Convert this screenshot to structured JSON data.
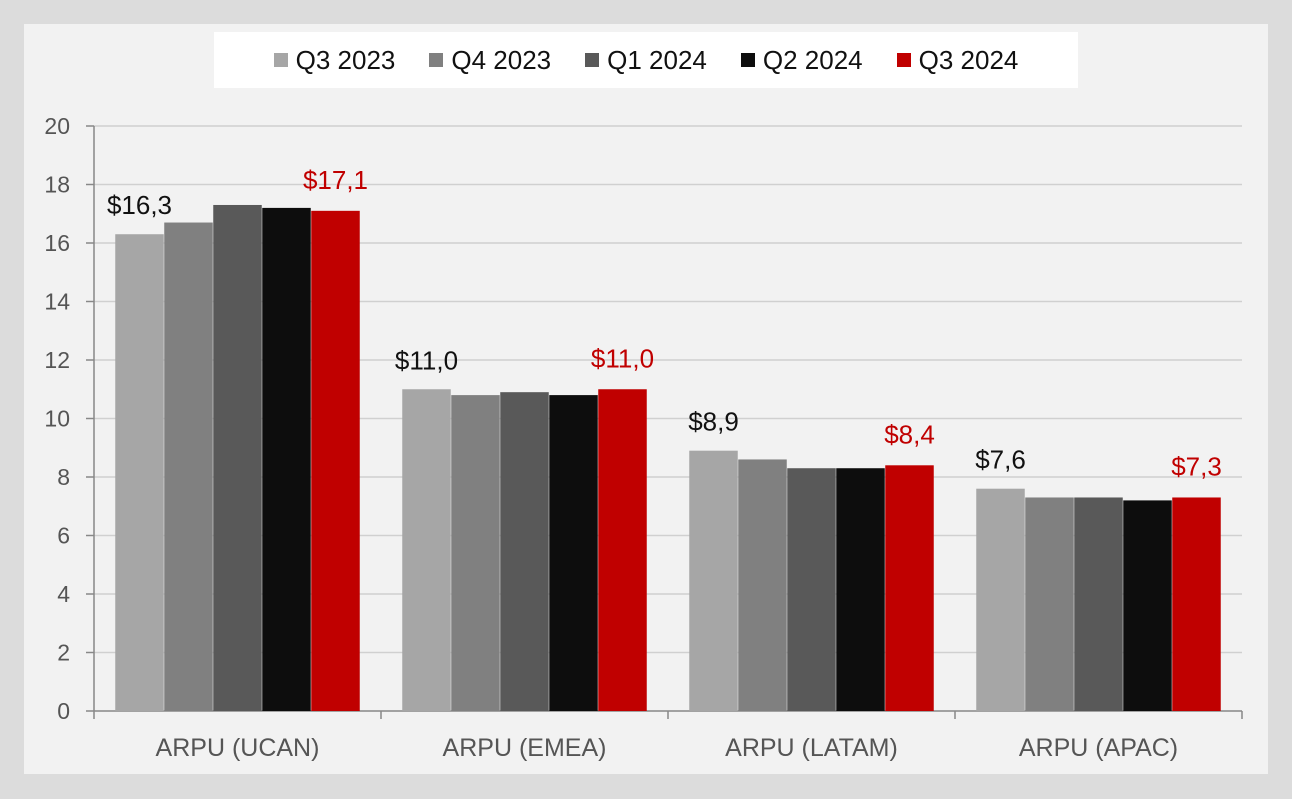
{
  "chart_data": {
    "type": "bar",
    "categories": [
      "ARPU (UCAN)",
      "ARPU (EMEA)",
      "ARPU (LATAM)",
      "ARPU (APAC)"
    ],
    "series": [
      {
        "name": "Q3 2023",
        "color": "#a6a6a6",
        "values": [
          16.3,
          11.0,
          8.9,
          7.6
        ]
      },
      {
        "name": "Q4 2023",
        "color": "#808080",
        "values": [
          16.7,
          10.8,
          8.6,
          7.3
        ]
      },
      {
        "name": "Q1 2024",
        "color": "#595959",
        "values": [
          17.3,
          10.9,
          8.3,
          7.3
        ]
      },
      {
        "name": "Q2 2024",
        "color": "#0d0d0d",
        "values": [
          17.2,
          10.8,
          8.3,
          7.2
        ]
      },
      {
        "name": "Q3 2024",
        "color": "#c00000",
        "values": [
          17.1,
          11.0,
          8.4,
          7.3
        ]
      }
    ],
    "data_labels": [
      {
        "category": "ARPU (UCAN)",
        "first": "$16,3",
        "last": "$17,1"
      },
      {
        "category": "ARPU (EMEA)",
        "first": "$11,0",
        "last": "$11,0"
      },
      {
        "category": "ARPU (LATAM)",
        "first": "$8,9",
        "last": "$8,4"
      },
      {
        "category": "ARPU (APAC)",
        "first": "$7,6",
        "last": "$7,3"
      }
    ],
    "ylim": [
      0,
      20
    ],
    "yticks": [
      "0",
      "2",
      "4",
      "6",
      "8",
      "10",
      "12",
      "14",
      "16",
      "18",
      "20"
    ],
    "grid": true,
    "legend_position": "top-center",
    "label_colors": {
      "first": "#111111",
      "last": "#c00000"
    },
    "title": "",
    "xlabel": "",
    "ylabel": ""
  }
}
